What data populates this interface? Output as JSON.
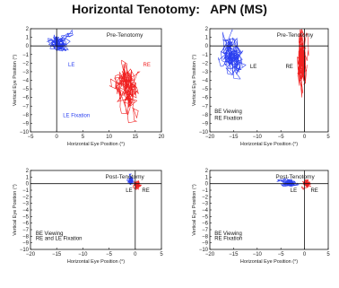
{
  "title": "Horizontal Tenotomy:   APN (MS)",
  "colors": {
    "le": "#2a3ff0",
    "re": "#f02020",
    "axis": "#111111"
  },
  "chart_data": [
    {
      "type": "scatter",
      "title": "Pre-Tenotomy",
      "xlabel": "Horizontal Eye Position (°)",
      "ylabel": "Vertical Eye Position (°)",
      "xlim": [
        -5,
        20
      ],
      "ylim": [
        -10,
        2
      ],
      "xticks": [
        -5,
        0,
        5,
        10,
        15,
        20
      ],
      "yticks": [
        2,
        1,
        0,
        -1,
        -2,
        -3,
        -4,
        -5,
        -6,
        -7,
        -8,
        -9,
        -10
      ],
      "annotations": [
        {
          "text": "LE",
          "x": 2.2,
          "y": -2.4,
          "color": "le"
        },
        {
          "text": "RE",
          "x": 16.5,
          "y": -2.4,
          "color": "re"
        },
        {
          "text": "LE Fixation",
          "x": 1.2,
          "y": -8.3,
          "color": "le"
        }
      ],
      "series": [
        {
          "color": "le",
          "cx": 0.2,
          "cy": 0.3,
          "sx": 1.2,
          "sy": 0.7,
          "n": 220
        },
        {
          "color": "re",
          "cx": 13.5,
          "cy": -4.8,
          "sx": 1.3,
          "sy": 1.8,
          "n": 260
        }
      ]
    },
    {
      "type": "scatter",
      "title": "Pre-Tenotomy",
      "xlabel": "Horizontal Eye Position (°)",
      "ylabel": "Vertical Eye Position (°)",
      "xlim": [
        -20,
        5
      ],
      "ylim": [
        -10,
        2
      ],
      "xticks": [
        -20,
        -15,
        -10,
        -5,
        0,
        5
      ],
      "yticks": [
        2,
        1,
        0,
        -1,
        -2,
        -3,
        -4,
        -5,
        -6,
        -7,
        -8,
        -9,
        -10
      ],
      "annotations": [
        {
          "text": "LE",
          "x": -11.5,
          "y": -2.6,
          "color": "axis"
        },
        {
          "text": "RE",
          "x": -4.0,
          "y": -2.6,
          "color": "axis"
        },
        {
          "text": "BE Viewing",
          "x": -19.0,
          "y": -7.8,
          "color": "axis"
        },
        {
          "text": "RE Fixation",
          "x": -19.0,
          "y": -8.6,
          "color": "axis"
        }
      ],
      "series": [
        {
          "color": "le",
          "cx": -15.5,
          "cy": -1.2,
          "sx": 1.5,
          "sy": 1.5,
          "n": 280
        },
        {
          "color": "re",
          "cx": -0.6,
          "cy": -1.8,
          "sx": 0.6,
          "sy": 2.2,
          "n": 280
        }
      ]
    },
    {
      "type": "scatter",
      "title": "Post-Tenotomy",
      "xlabel": "Horizontal Eye Position (°)",
      "ylabel": "Vertical Eye Position (°)",
      "xlim": [
        -20,
        5
      ],
      "ylim": [
        -10,
        2
      ],
      "xticks": [
        -20,
        -15,
        -10,
        -5,
        0,
        5
      ],
      "yticks": [
        2,
        1,
        0,
        -1,
        -2,
        -3,
        -4,
        -5,
        -6,
        -7,
        -8,
        -9,
        -10
      ],
      "annotations": [
        {
          "text": "LE",
          "x": -1.8,
          "y": -1.3,
          "color": "axis"
        },
        {
          "text": "RE",
          "x": 1.3,
          "y": -1.3,
          "color": "axis"
        },
        {
          "text": "BE Viewing",
          "x": -19.0,
          "y": -7.8,
          "color": "axis"
        },
        {
          "text": "RE and LE Fixation",
          "x": -19.0,
          "y": -8.6,
          "color": "axis"
        }
      ],
      "series": [
        {
          "color": "le",
          "cx": -0.8,
          "cy": 0.3,
          "sx": 0.4,
          "sy": 0.5,
          "n": 160
        },
        {
          "color": "re",
          "cx": 0.5,
          "cy": 0.0,
          "sx": 0.4,
          "sy": 0.5,
          "n": 160
        }
      ]
    },
    {
      "type": "scatter",
      "title": "Post-Tenotomy",
      "xlabel": "Horizontal Eye Position (°)",
      "ylabel": "Vertical Eye Position (°)",
      "xlim": [
        -20,
        5
      ],
      "ylim": [
        -10,
        2
      ],
      "xticks": [
        -20,
        -15,
        -10,
        -5,
        0,
        5
      ],
      "yticks": [
        2,
        1,
        0,
        -1,
        -2,
        -3,
        -4,
        -5,
        -6,
        -7,
        -8,
        -9,
        -10
      ],
      "annotations": [
        {
          "text": "LE",
          "x": -3.0,
          "y": -1.3,
          "color": "axis"
        },
        {
          "text": "RE",
          "x": 1.3,
          "y": -1.3,
          "color": "axis"
        },
        {
          "text": "BE Viewing",
          "x": -19.0,
          "y": -7.8,
          "color": "axis"
        },
        {
          "text": "RE Fixation",
          "x": -19.0,
          "y": -8.6,
          "color": "axis"
        }
      ],
      "series": [
        {
          "color": "le",
          "cx": -3.2,
          "cy": 0.1,
          "sx": 1.2,
          "sy": 0.35,
          "n": 180
        },
        {
          "color": "re",
          "cx": 0.4,
          "cy": 0.0,
          "sx": 0.5,
          "sy": 0.4,
          "n": 160
        }
      ]
    }
  ]
}
